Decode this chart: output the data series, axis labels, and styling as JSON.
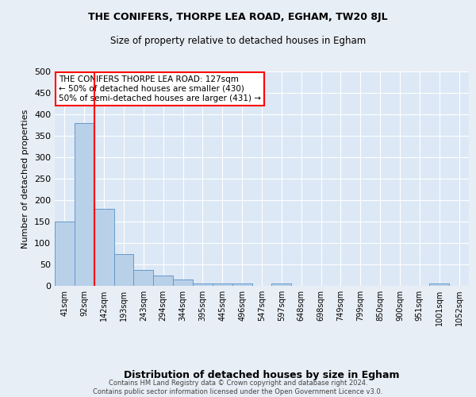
{
  "title1": "THE CONIFERS, THORPE LEA ROAD, EGHAM, TW20 8JL",
  "title2": "Size of property relative to detached houses in Egham",
  "xlabel": "Distribution of detached houses by size in Egham",
  "ylabel": "Number of detached properties",
  "categories": [
    "41sqm",
    "92sqm",
    "142sqm",
    "193sqm",
    "243sqm",
    "294sqm",
    "344sqm",
    "395sqm",
    "445sqm",
    "496sqm",
    "547sqm",
    "597sqm",
    "648sqm",
    "698sqm",
    "749sqm",
    "799sqm",
    "850sqm",
    "900sqm",
    "951sqm",
    "1001sqm",
    "1052sqm"
  ],
  "values": [
    150,
    380,
    180,
    75,
    37,
    25,
    15,
    6,
    5,
    5,
    0,
    5,
    0,
    0,
    0,
    0,
    0,
    0,
    0,
    5,
    0
  ],
  "bar_color": "#b8d0e8",
  "bar_edge_color": "#6699cc",
  "vline_idx": 1.5,
  "vline_color": "red",
  "vline_lw": 1.5,
  "ylim": [
    0,
    500
  ],
  "yticks": [
    0,
    50,
    100,
    150,
    200,
    250,
    300,
    350,
    400,
    450,
    500
  ],
  "annotation_box_text": "THE CONIFERS THORPE LEA ROAD: 127sqm\n← 50% of detached houses are smaller (430)\n50% of semi-detached houses are larger (431) →",
  "annotation_box_color": "white",
  "annotation_box_edge_color": "red",
  "footer_text": "Contains HM Land Registry data © Crown copyright and database right 2024.\nContains public sector information licensed under the Open Government Licence v3.0.",
  "background_color": "#e8eef5",
  "plot_background_color": "#dce8f5",
  "title_fontsize": 9,
  "subtitle_fontsize": 8.5,
  "ylabel_fontsize": 8,
  "xlabel_fontsize": 9,
  "tick_fontsize": 7,
  "ytick_fontsize": 8,
  "footer_fontsize": 6,
  "annot_fontsize": 7.5
}
